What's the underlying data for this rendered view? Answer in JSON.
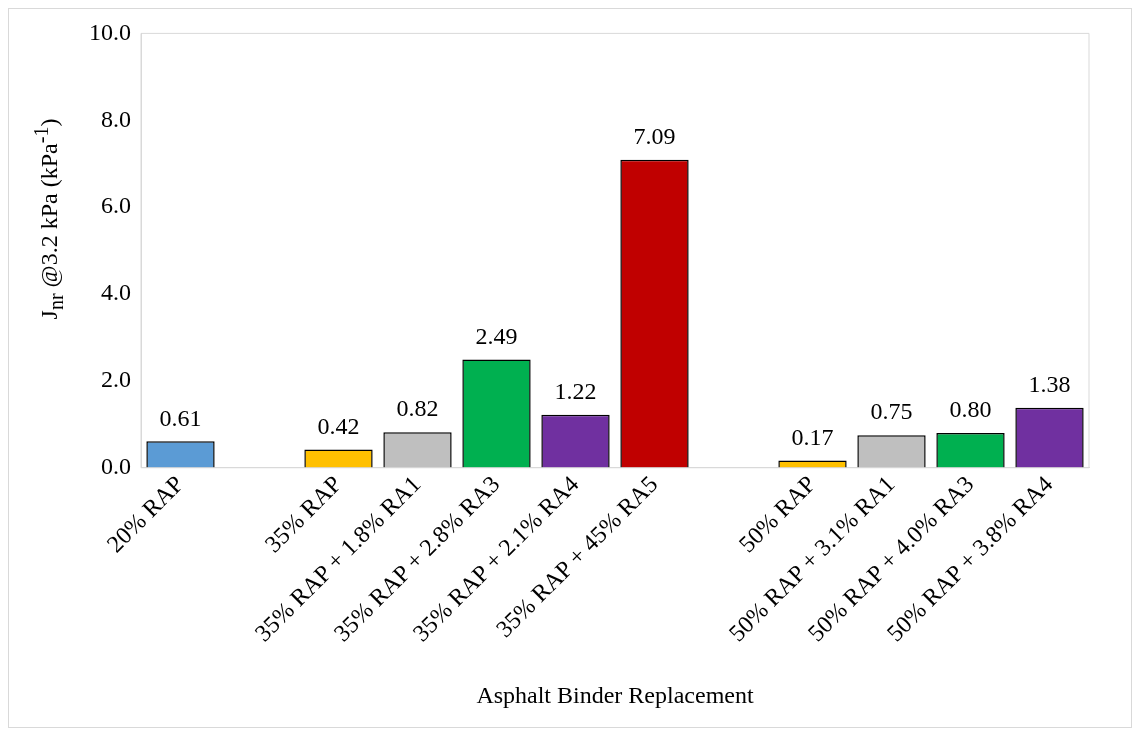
{
  "chart_data": {
    "type": "bar",
    "xlabel": "Asphalt Binder Replacement",
    "ylabel": "J$_{nr}$ @3.2 kPa (kPa$^{-1}$)",
    "categories": [
      "20% RAP",
      null,
      "35% RAP",
      "35% RAP + 1.8% RA1",
      "35% RAP + 2.8% RA3",
      "35% RAP + 2.1% RA4",
      "35% RAP + 45% RA5",
      null,
      "50% RAP",
      "50% RAP + 3.1% RA1",
      "50% RAP + 4.0% RA3",
      "50% RAP + 3.8% RA4"
    ],
    "values": [
      0.61,
      null,
      0.42,
      0.82,
      2.49,
      1.22,
      7.09,
      null,
      0.17,
      0.75,
      0.8,
      1.38
    ],
    "colors": [
      "#5b9bd5",
      "#ffffff",
      "#ffc000",
      "#bfbfbf",
      "#00b050",
      "#7030a0",
      "#c00000",
      "#ffffff",
      "#ffc000",
      "#bfbfbf",
      "#00b050",
      "#7030a0"
    ],
    "value_labels": [
      "0.61",
      null,
      "0.42",
      "0.82",
      "2.49",
      "1.22",
      "7.09",
      null,
      "0.17",
      "0.75",
      "0.80",
      "1.38"
    ],
    "ylim": [
      0,
      10
    ],
    "yticks": [
      {
        "value": 0,
        "label": "0.0"
      },
      {
        "value": 2,
        "label": "2.0"
      },
      {
        "value": 4,
        "label": "4.0"
      },
      {
        "value": 6,
        "label": "6.0"
      },
      {
        "value": 8,
        "label": "8.0"
      },
      {
        "value": 10,
        "label": "10.0"
      }
    ],
    "grid": false,
    "legend": false
  }
}
